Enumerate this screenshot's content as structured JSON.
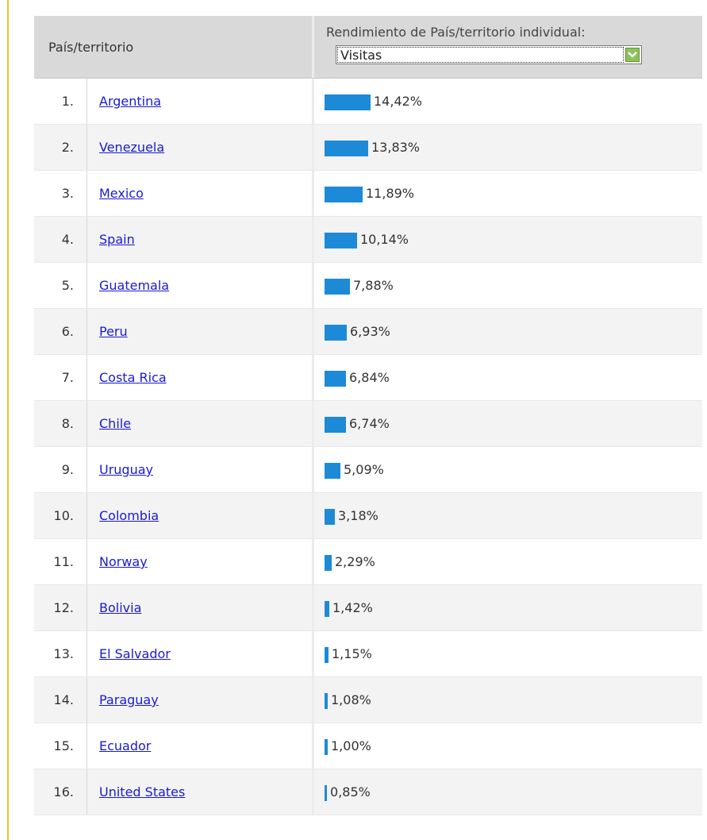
{
  "header": {
    "country_label": "País/territorio",
    "performance_label": "Rendimiento de País/territorio individual:",
    "metric_select": {
      "selected": "Visitas"
    }
  },
  "rows": [
    {
      "rank": "1.",
      "country": "Argentina",
      "percent_text": "14,42%",
      "percent": 14.42
    },
    {
      "rank": "2.",
      "country": "Venezuela",
      "percent_text": "13,83%",
      "percent": 13.83
    },
    {
      "rank": "3.",
      "country": "Mexico",
      "percent_text": "11,89%",
      "percent": 11.89
    },
    {
      "rank": "4.",
      "country": "Spain",
      "percent_text": "10,14%",
      "percent": 10.14
    },
    {
      "rank": "5.",
      "country": "Guatemala",
      "percent_text": "7,88%",
      "percent": 7.88
    },
    {
      "rank": "6.",
      "country": "Peru",
      "percent_text": "6,93%",
      "percent": 6.93
    },
    {
      "rank": "7.",
      "country": "Costa Rica",
      "percent_text": "6,84%",
      "percent": 6.84
    },
    {
      "rank": "8.",
      "country": "Chile",
      "percent_text": "6,74%",
      "percent": 6.74
    },
    {
      "rank": "9.",
      "country": "Uruguay",
      "percent_text": "5,09%",
      "percent": 5.09
    },
    {
      "rank": "10.",
      "country": "Colombia",
      "percent_text": "3,18%",
      "percent": 3.18
    },
    {
      "rank": "11.",
      "country": "Norway",
      "percent_text": "2,29%",
      "percent": 2.29
    },
    {
      "rank": "12.",
      "country": "Bolivia",
      "percent_text": "1,42%",
      "percent": 1.42
    },
    {
      "rank": "13.",
      "country": "El Salvador",
      "percent_text": "1,15%",
      "percent": 1.15
    },
    {
      "rank": "14.",
      "country": "Paraguay",
      "percent_text": "1,08%",
      "percent": 1.08
    },
    {
      "rank": "15.",
      "country": "Ecuador",
      "percent_text": "1,00%",
      "percent": 1.0
    },
    {
      "rank": "16.",
      "country": "United States",
      "percent_text": "0,85%",
      "percent": 0.85
    }
  ],
  "colors": {
    "bar": "#1d8ad8",
    "link": "#1a1ad0",
    "frame": "#f2c12e",
    "header_bg": "#d9d9d9",
    "dropdown_button": "#8cc25b"
  },
  "icons": {
    "dropdown": "chevron-down-icon"
  }
}
